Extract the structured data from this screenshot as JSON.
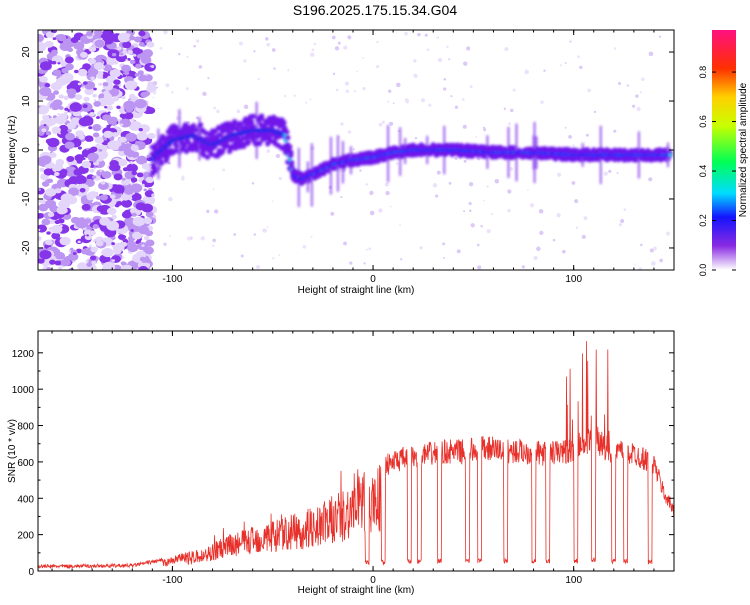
{
  "title": "S196.2025.175.15.34.G04",
  "chart_data": [
    {
      "type": "heatmap",
      "xlabel": "Height of straight line (km)",
      "ylabel": "Frequency (Hz)",
      "xlim": [
        -167,
        150
      ],
      "ylim": [
        -24.5,
        24.5
      ],
      "xticks": [
        -100,
        0,
        100
      ],
      "yticks": [
        -20,
        -10,
        0,
        10,
        20
      ],
      "colorbar": {
        "label": "Normalized spectral amplitude",
        "range": [
          0.0,
          0.97
        ],
        "ticks": [
          "0.0",
          "0.2",
          "0.4",
          "0.6",
          "0.8"
        ]
      },
      "ridge": {
        "x": [
          -110,
          -100,
          -90,
          -80,
          -70,
          -60,
          -50,
          -44,
          -40,
          -35,
          -30,
          -20,
          -10,
          0,
          10,
          20,
          40,
          60,
          80,
          100,
          120,
          148
        ],
        "y": [
          -2,
          2,
          3,
          1,
          3,
          4,
          4,
          3,
          -5,
          -6,
          -5,
          -3,
          -2,
          -1.5,
          -0.5,
          0,
          0,
          -0.5,
          -0.5,
          -1,
          -1,
          -1
        ]
      }
    },
    {
      "type": "line",
      "xlabel": "Height of straight line (km)",
      "ylabel": "SNR (10 * v/v)",
      "xlim": [
        -167,
        150
      ],
      "ylim": [
        0,
        1320
      ],
      "xticks": [
        -100,
        0,
        100
      ],
      "yticks": [
        0,
        200,
        400,
        600,
        800,
        1000,
        1200
      ],
      "color": "#e8302a",
      "envelope": {
        "x": [
          -167,
          -120,
          -105,
          -95,
          -85,
          -75,
          -65,
          -55,
          -45,
          -35,
          -25,
          -15,
          -5,
          5,
          15,
          25,
          35,
          45,
          55,
          65,
          75,
          85,
          95,
          100,
          105,
          110,
          115,
          120,
          130,
          140,
          145,
          150
        ],
        "y": [
          25,
          30,
          60,
          100,
          120,
          190,
          230,
          270,
          300,
          330,
          380,
          460,
          540,
          610,
          650,
          670,
          690,
          690,
          710,
          700,
          690,
          680,
          690,
          700,
          740,
          780,
          720,
          690,
          680,
          620,
          450,
          350
        ]
      },
      "dropouts": [
        -3,
        5,
        18,
        23,
        33,
        47,
        53,
        66,
        80,
        87,
        101,
        110,
        120,
        126,
        138
      ]
    }
  ]
}
